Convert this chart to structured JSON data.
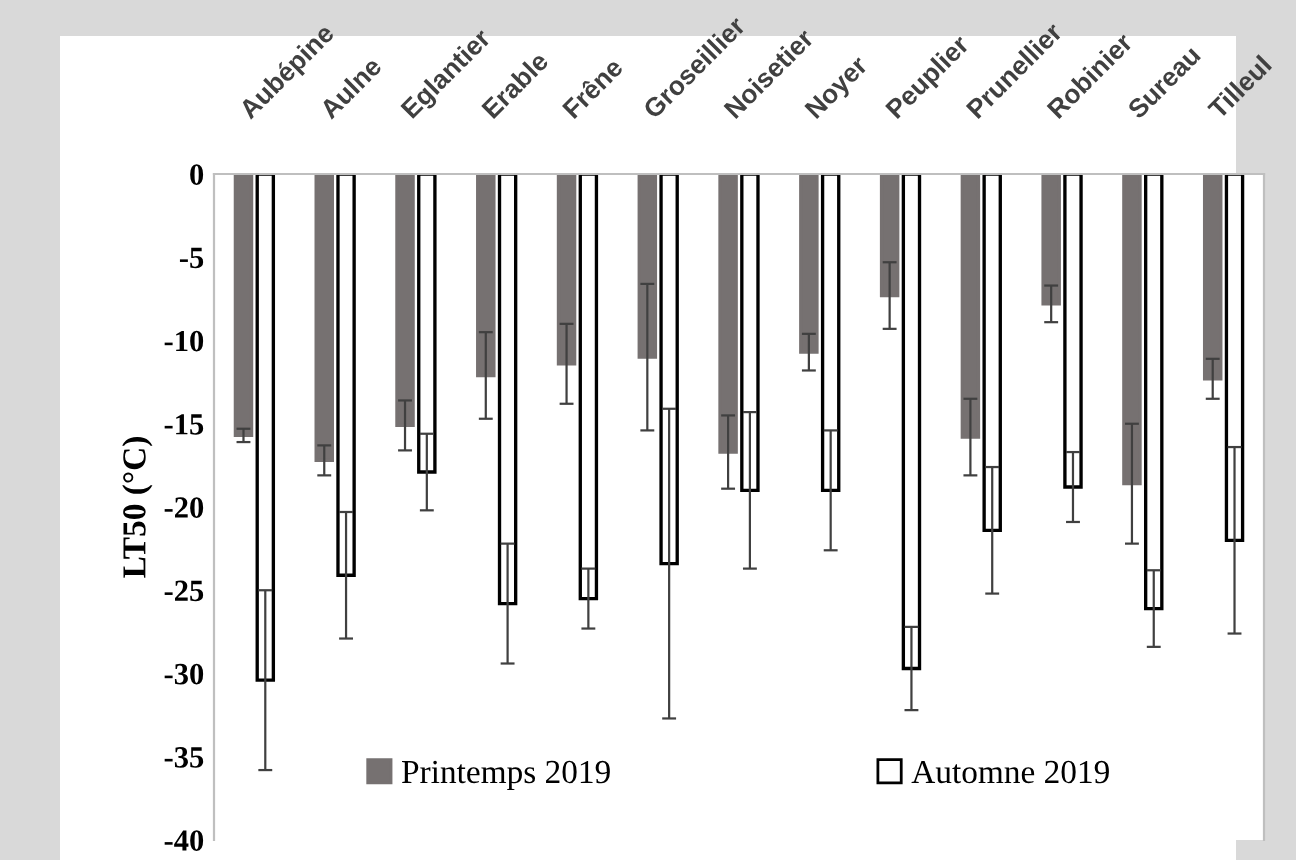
{
  "chart_data": {
    "type": "bar",
    "ylabel": "LT50 (°C)",
    "categories": [
      "Aubépine",
      "Aulne",
      "Eglantier",
      "Erable",
      "Frêne",
      "Groseillier",
      "Noisetier",
      "Noyer",
      "Peuplier",
      "Prunellier",
      "Robinier",
      "Sureau",
      "Tilleul"
    ],
    "series": [
      {
        "name": "Printemps 2019",
        "color": "#767171",
        "values": [
          -15.7,
          -17.2,
          -15.1,
          -12.1,
          -11.4,
          -11.0,
          -16.7,
          -10.7,
          -7.3,
          -15.8,
          -7.8,
          -18.6,
          -12.3
        ],
        "errors": [
          0.4,
          0.9,
          1.5,
          2.6,
          2.4,
          4.4,
          2.2,
          1.1,
          2.0,
          2.3,
          1.1,
          3.6,
          1.2
        ]
      },
      {
        "name": "Automne 2019",
        "color": "#ffffff",
        "values": [
          -30.4,
          -24.1,
          -17.9,
          -25.8,
          -25.5,
          -23.4,
          -19.0,
          -19.0,
          -29.7,
          -21.4,
          -18.8,
          -26.1,
          -22.0
        ],
        "errors": [
          5.4,
          3.8,
          2.3,
          3.6,
          1.8,
          9.3,
          4.7,
          3.6,
          2.5,
          3.8,
          2.1,
          2.3,
          5.6
        ]
      }
    ],
    "ylim": [
      -40,
      0
    ],
    "yticks": [
      -40,
      -35,
      -30,
      -25,
      -20,
      -15,
      -10,
      -5,
      0
    ],
    "grid": false,
    "legend": "bottom"
  }
}
